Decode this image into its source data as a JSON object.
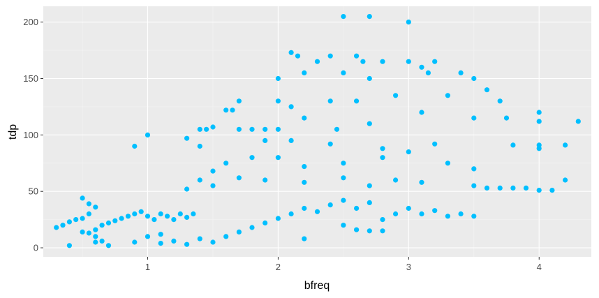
{
  "chart_data": {
    "type": "scatter",
    "title": "",
    "xlabel": "bfreq",
    "ylabel": "tdp",
    "xlim": [
      0.2,
      4.4
    ],
    "ylim": [
      -8,
      214
    ],
    "x_ticks": [
      1,
      2,
      3,
      4
    ],
    "x_tick_labels": [
      "1",
      "2",
      "3",
      "4"
    ],
    "y_ticks": [
      0,
      50,
      100,
      150,
      200
    ],
    "y_tick_labels": [
      "0",
      "50",
      "100",
      "150",
      "200"
    ],
    "grid": true,
    "legend": "none",
    "colors": {
      "point": "#00bfff",
      "panel": "#ebebeb",
      "grid_major": "#ffffff",
      "grid_minor": "#f4f4f4"
    },
    "points": [
      [
        2.5,
        205
      ],
      [
        2.7,
        205
      ],
      [
        3.0,
        200
      ],
      [
        2.1,
        173
      ],
      [
        2.15,
        170
      ],
      [
        2.3,
        165
      ],
      [
        2.4,
        170
      ],
      [
        2.6,
        170
      ],
      [
        2.65,
        165
      ],
      [
        2.8,
        165
      ],
      [
        3.0,
        165
      ],
      [
        3.2,
        165
      ],
      [
        2.0,
        150
      ],
      [
        2.2,
        155
      ],
      [
        2.5,
        155
      ],
      [
        2.7,
        150
      ],
      [
        3.1,
        160
      ],
      [
        3.15,
        155
      ],
      [
        3.4,
        155
      ],
      [
        3.5,
        150
      ],
      [
        1.7,
        130
      ],
      [
        2.0,
        130
      ],
      [
        2.1,
        125
      ],
      [
        2.4,
        130
      ],
      [
        2.6,
        130
      ],
      [
        2.9,
        135
      ],
      [
        3.3,
        135
      ],
      [
        3.6,
        140
      ],
      [
        3.7,
        130
      ],
      [
        1.6,
        122
      ],
      [
        1.65,
        122
      ],
      [
        1.5,
        107
      ],
      [
        1.4,
        105
      ],
      [
        1.45,
        105
      ],
      [
        1.7,
        105
      ],
      [
        1.8,
        105
      ],
      [
        1.9,
        105
      ],
      [
        2.0,
        105
      ],
      [
        2.2,
        115
      ],
      [
        2.45,
        105
      ],
      [
        2.7,
        110
      ],
      [
        3.1,
        120
      ],
      [
        3.5,
        115
      ],
      [
        3.75,
        115
      ],
      [
        4.0,
        120
      ],
      [
        4.0,
        112
      ],
      [
        4.3,
        112
      ],
      [
        0.9,
        90
      ],
      [
        1.0,
        100
      ],
      [
        1.3,
        97
      ],
      [
        1.4,
        90
      ],
      [
        1.9,
        95
      ],
      [
        2.1,
        95
      ],
      [
        2.4,
        92
      ],
      [
        2.8,
        88
      ],
      [
        3.2,
        92
      ],
      [
        3.8,
        91
      ],
      [
        4.0,
        91
      ],
      [
        4.0,
        88
      ],
      [
        4.2,
        91
      ],
      [
        1.5,
        68
      ],
      [
        1.6,
        75
      ],
      [
        1.8,
        80
      ],
      [
        2.0,
        80
      ],
      [
        2.2,
        72
      ],
      [
        2.5,
        75
      ],
      [
        2.8,
        80
      ],
      [
        3.0,
        85
      ],
      [
        3.3,
        75
      ],
      [
        3.5,
        70
      ],
      [
        1.3,
        52
      ],
      [
        1.4,
        60
      ],
      [
        1.5,
        55
      ],
      [
        1.7,
        62
      ],
      [
        1.9,
        60
      ],
      [
        2.2,
        58
      ],
      [
        2.5,
        62
      ],
      [
        2.7,
        55
      ],
      [
        2.9,
        60
      ],
      [
        3.1,
        58
      ],
      [
        3.5,
        55
      ],
      [
        3.6,
        53
      ],
      [
        3.7,
        53
      ],
      [
        3.8,
        53
      ],
      [
        3.9,
        53
      ],
      [
        4.0,
        51
      ],
      [
        4.1,
        51
      ],
      [
        4.2,
        60
      ],
      [
        0.5,
        44
      ],
      [
        0.55,
        39
      ],
      [
        0.6,
        36
      ],
      [
        0.3,
        18
      ],
      [
        0.35,
        20
      ],
      [
        0.4,
        23
      ],
      [
        0.45,
        25
      ],
      [
        0.5,
        26
      ],
      [
        0.55,
        30
      ],
      [
        0.5,
        14
      ],
      [
        0.55,
        13
      ],
      [
        0.6,
        16
      ],
      [
        0.65,
        20
      ],
      [
        0.7,
        22
      ],
      [
        0.75,
        24
      ],
      [
        0.8,
        26
      ],
      [
        0.85,
        28
      ],
      [
        0.9,
        30
      ],
      [
        0.95,
        32
      ],
      [
        1.0,
        28
      ],
      [
        1.05,
        25
      ],
      [
        1.1,
        30
      ],
      [
        1.15,
        28
      ],
      [
        1.2,
        25
      ],
      [
        1.25,
        30
      ],
      [
        1.3,
        27
      ],
      [
        1.35,
        30
      ],
      [
        0.6,
        10
      ],
      [
        0.65,
        6
      ],
      [
        0.7,
        2
      ],
      [
        0.9,
        5
      ],
      [
        1.0,
        10
      ],
      [
        1.1,
        4
      ],
      [
        1.2,
        6
      ],
      [
        1.3,
        3
      ],
      [
        1.4,
        8
      ],
      [
        1.5,
        5
      ],
      [
        1.6,
        10
      ],
      [
        1.7,
        14
      ],
      [
        1.8,
        18
      ],
      [
        1.9,
        22
      ],
      [
        2.0,
        26
      ],
      [
        2.1,
        30
      ],
      [
        2.2,
        35
      ],
      [
        2.3,
        32
      ],
      [
        2.4,
        38
      ],
      [
        2.5,
        42
      ],
      [
        2.6,
        35
      ],
      [
        2.7,
        40
      ],
      [
        2.8,
        25
      ],
      [
        2.9,
        30
      ],
      [
        3.0,
        35
      ],
      [
        3.1,
        30
      ],
      [
        3.2,
        33
      ],
      [
        3.3,
        28
      ],
      [
        3.4,
        30
      ],
      [
        3.5,
        28
      ],
      [
        2.2,
        8
      ],
      [
        2.5,
        20
      ],
      [
        2.6,
        16
      ],
      [
        2.7,
        15
      ],
      [
        2.8,
        15
      ],
      [
        0.4,
        2
      ],
      [
        0.6,
        5
      ],
      [
        1.1,
        12
      ]
    ]
  }
}
